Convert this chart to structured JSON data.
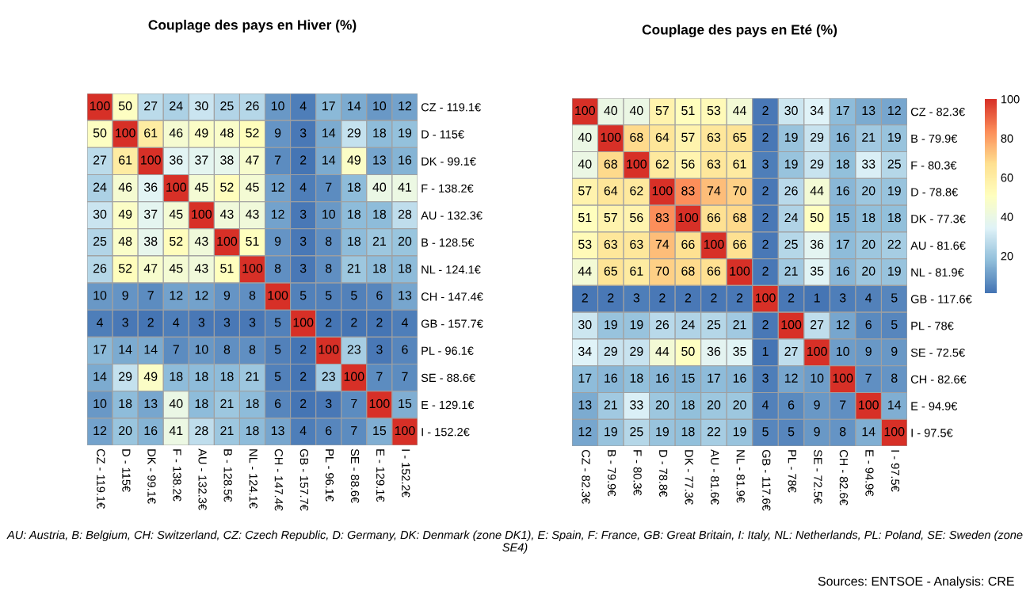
{
  "chart_data": [
    {
      "type": "heatmap",
      "title": "Couplage des pays en Hiver (%)",
      "categories": [
        "CZ - 119.1€",
        "D - 115€",
        "DK - 99.1€",
        "F - 138.2€",
        "AU - 132.3€",
        "B - 128.5€",
        "NL - 124.1€",
        "CH - 147.4€",
        "GB - 157.7€",
        "PL - 96.1€",
        "SE - 88.6€",
        "E - 129.1€",
        "I - 152.2€"
      ],
      "y_categories": [
        "CZ - 119.1€",
        "D - 115€",
        "DK - 99.1€",
        "F - 138.2€",
        "AU - 132.3€",
        "B - 128.5€",
        "NL - 124.1€",
        "CH - 147.4€",
        "GB - 157.7€",
        "PL - 96.1€",
        "SE - 88.6€",
        "E - 129.1€",
        "I - 152.2€"
      ],
      "cells": [
        [
          100,
          50,
          27,
          24,
          30,
          25,
          26,
          10,
          4,
          17,
          14,
          10,
          12
        ],
        [
          50,
          100,
          61,
          46,
          49,
          48,
          52,
          9,
          3,
          14,
          29,
          18,
          19
        ],
        [
          27,
          61,
          100,
          36,
          37,
          38,
          47,
          7,
          2,
          14,
          49,
          13,
          16
        ],
        [
          24,
          46,
          36,
          100,
          45,
          52,
          45,
          12,
          4,
          7,
          18,
          40,
          41
        ],
        [
          30,
          49,
          37,
          45,
          100,
          43,
          43,
          12,
          3,
          10,
          18,
          18,
          28
        ],
        [
          25,
          48,
          38,
          52,
          43,
          100,
          51,
          9,
          3,
          8,
          18,
          21,
          20
        ],
        [
          26,
          52,
          47,
          45,
          43,
          51,
          100,
          8,
          3,
          8,
          21,
          18,
          18
        ],
        [
          10,
          9,
          7,
          12,
          12,
          9,
          8,
          100,
          5,
          5,
          5,
          6,
          13
        ],
        [
          4,
          3,
          2,
          4,
          3,
          3,
          3,
          5,
          100,
          2,
          2,
          2,
          4
        ],
        [
          17,
          14,
          14,
          7,
          10,
          8,
          8,
          5,
          2,
          100,
          23,
          3,
          6
        ],
        [
          14,
          29,
          49,
          18,
          18,
          18,
          21,
          5,
          2,
          23,
          100,
          7,
          7
        ],
        [
          10,
          18,
          13,
          40,
          18,
          21,
          18,
          6,
          2,
          3,
          7,
          100,
          15
        ],
        [
          12,
          20,
          16,
          41,
          28,
          21,
          18,
          13,
          4,
          6,
          7,
          15,
          100
        ]
      ],
      "data_labels": true
    },
    {
      "type": "heatmap",
      "title": "Couplage des pays en Eté (%)",
      "categories": [
        "CZ - 82.3€",
        "B - 79.9€",
        "F - 80.3€",
        "D - 78.8€",
        "DK - 77.3€",
        "AU - 81.6€",
        "NL - 81.9€",
        "GB - 117.6€",
        "PL - 78€",
        "SE - 72.5€",
        "CH - 82.6€",
        "E - 94.9€",
        "I - 97.5€"
      ],
      "y_categories": [
        "CZ - 82.3€",
        "B - 79.9€",
        "F - 80.3€",
        "D - 78.8€",
        "DK - 77.3€",
        "AU - 81.6€",
        "NL - 81.9€",
        "GB - 117.6€",
        "PL - 78€",
        "SE - 72.5€",
        "CH - 82.6€",
        "E - 94.9€",
        "I - 97.5€"
      ],
      "cells": [
        [
          100,
          40,
          40,
          57,
          51,
          53,
          44,
          2,
          30,
          34,
          17,
          13,
          12
        ],
        [
          40,
          100,
          68,
          64,
          57,
          63,
          65,
          2,
          19,
          29,
          16,
          21,
          19
        ],
        [
          40,
          68,
          100,
          62,
          56,
          63,
          61,
          3,
          19,
          29,
          18,
          33,
          25
        ],
        [
          57,
          64,
          62,
          100,
          83,
          74,
          70,
          2,
          26,
          44,
          16,
          20,
          19
        ],
        [
          51,
          57,
          56,
          83,
          100,
          66,
          68,
          2,
          24,
          50,
          15,
          18,
          18
        ],
        [
          53,
          63,
          63,
          74,
          66,
          100,
          66,
          2,
          25,
          36,
          17,
          20,
          22
        ],
        [
          44,
          65,
          61,
          70,
          68,
          66,
          100,
          2,
          21,
          35,
          16,
          20,
          19
        ],
        [
          2,
          2,
          3,
          2,
          2,
          2,
          2,
          100,
          2,
          1,
          3,
          4,
          5
        ],
        [
          30,
          19,
          19,
          26,
          24,
          25,
          21,
          2,
          100,
          27,
          12,
          6,
          5
        ],
        [
          34,
          29,
          29,
          44,
          50,
          36,
          35,
          1,
          27,
          100,
          10,
          9,
          9
        ],
        [
          17,
          16,
          18,
          16,
          15,
          17,
          16,
          3,
          12,
          10,
          100,
          7,
          8
        ],
        [
          13,
          21,
          33,
          20,
          18,
          20,
          20,
          4,
          6,
          9,
          7,
          100,
          14
        ],
        [
          12,
          19,
          25,
          19,
          18,
          22,
          19,
          5,
          5,
          9,
          8,
          14,
          100
        ]
      ],
      "clim": [
        1,
        100
      ],
      "cticks": [
        20,
        40,
        60,
        80,
        100
      ],
      "data_labels": true,
      "annotations": [
        "AU: Austria, B: Belgium, CH: Switzerland, CZ: Czech Republic, D: Germany, DK: Denmark (zone DK1), E: Spain, F: France, GB: Great Britain, I: Italy, NL: Netherlands, PL: Poland, SE: Sweden (zone SE4)",
        "Sources: ENTSOE - Analysis: CRE"
      ]
    }
  ]
}
